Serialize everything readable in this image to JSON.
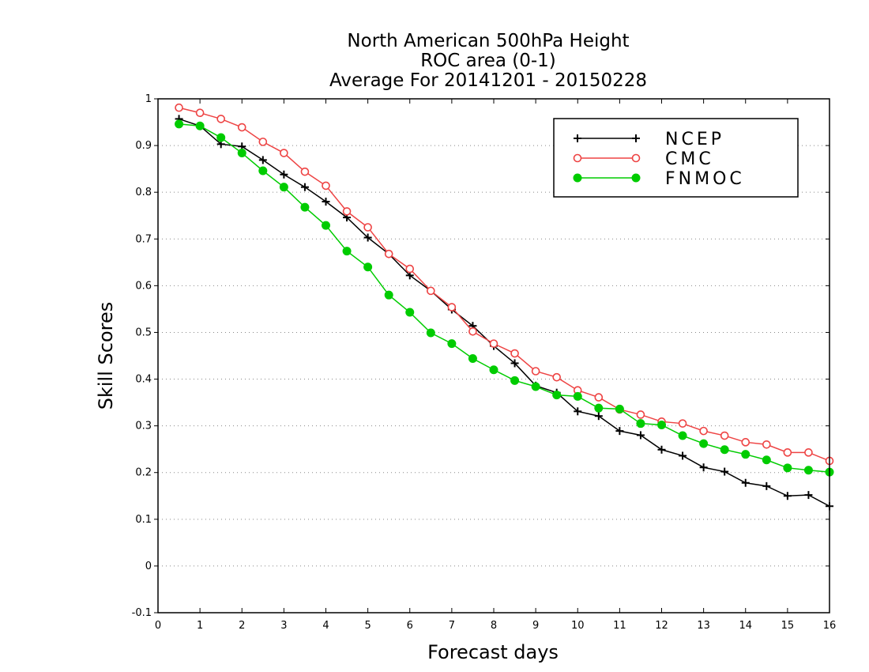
{
  "chart_data": {
    "type": "line",
    "title_lines": [
      "North American 500hPa Height",
      "ROC area (0-1)",
      "Average For 20141201 - 20150228"
    ],
    "xlabel": "Forecast days",
    "ylabel": "Skill Scores",
    "xlim": [
      0,
      16
    ],
    "ylim": [
      -0.1,
      1
    ],
    "x_ticks": [
      "0",
      "1",
      "2",
      "3",
      "4",
      "5",
      "6",
      "7",
      "8",
      "9",
      "10",
      "11",
      "12",
      "13",
      "14",
      "15",
      "16"
    ],
    "y_ticks": [
      "-0.1",
      "0",
      "0.1",
      "0.2",
      "0.3",
      "0.4",
      "0.5",
      "0.6",
      "0.7",
      "0.8",
      "0.9",
      "1"
    ],
    "grid": "horizontal dotted",
    "legend_position": "top-right",
    "x": [
      0.5,
      1,
      1.5,
      2,
      2.5,
      3,
      3.5,
      4,
      4.5,
      5,
      5.5,
      6,
      6.5,
      7,
      7.5,
      8,
      8.5,
      9,
      9.5,
      10,
      10.5,
      11,
      11.5,
      12,
      12.5,
      13,
      13.5,
      14,
      14.5,
      15,
      15.5,
      16
    ],
    "series": [
      {
        "name": "NCEP",
        "color": "#000000",
        "marker": "plus",
        "values": [
          0.957,
          0.942,
          0.903,
          0.898,
          0.869,
          0.838,
          0.811,
          0.78,
          0.746,
          0.703,
          0.668,
          0.622,
          0.589,
          0.549,
          0.514,
          0.471,
          0.434,
          0.386,
          0.371,
          0.331,
          0.321,
          0.289,
          0.28,
          0.249,
          0.236,
          0.211,
          0.202,
          0.178,
          0.171,
          0.15,
          0.152,
          0.128
        ]
      },
      {
        "name": "CMC",
        "color": "#ee4444",
        "marker": "open-circle",
        "values": [
          0.981,
          0.97,
          0.957,
          0.939,
          0.908,
          0.884,
          0.844,
          0.814,
          0.759,
          0.725,
          0.668,
          0.636,
          0.589,
          0.554,
          0.502,
          0.476,
          0.455,
          0.417,
          0.404,
          0.376,
          0.361,
          0.335,
          0.324,
          0.309,
          0.305,
          0.289,
          0.279,
          0.265,
          0.26,
          0.243,
          0.243,
          0.225
        ]
      },
      {
        "name": "FNMOC",
        "color": "#00cc00",
        "marker": "filled-circle",
        "values": [
          0.946,
          0.942,
          0.917,
          0.884,
          0.846,
          0.811,
          0.768,
          0.729,
          0.674,
          0.64,
          0.58,
          0.543,
          0.499,
          0.476,
          0.444,
          0.42,
          0.397,
          0.384,
          0.366,
          0.363,
          0.338,
          0.336,
          0.305,
          0.302,
          0.279,
          0.262,
          0.249,
          0.239,
          0.227,
          0.21,
          0.205,
          0.201
        ]
      }
    ]
  }
}
